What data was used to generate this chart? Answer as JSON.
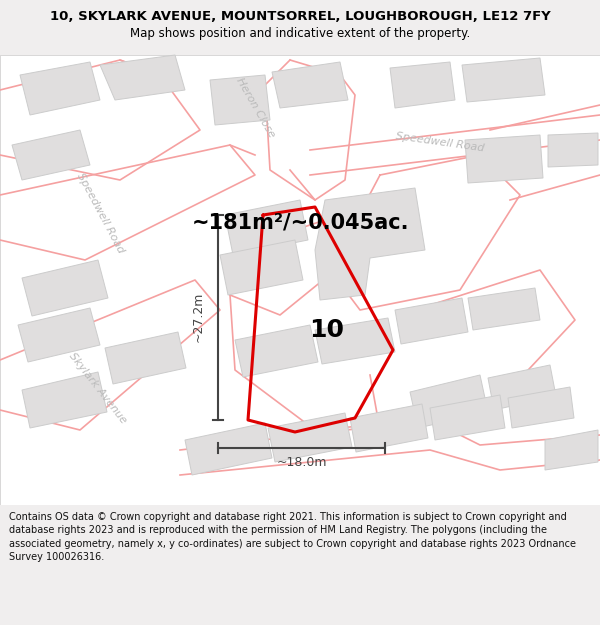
{
  "title_line1": "10, SKYLARK AVENUE, MOUNTSORREL, LOUGHBOROUGH, LE12 7FY",
  "title_line2": "Map shows position and indicative extent of the property.",
  "area_text": "~181m²/~0.045ac.",
  "dim_height": "~27.2m",
  "dim_width": "~18.0m",
  "plot_label": "10",
  "footer_text": "Contains OS data © Crown copyright and database right 2021. This information is subject to Crown copyright and database rights 2023 and is reproduced with the permission of HM Land Registry. The polygons (including the associated geometry, namely x, y co-ordinates) are subject to Crown copyright and database rights 2023 Ordnance Survey 100026316.",
  "bg_color": "#f0eeee",
  "map_bg": "#ffffff",
  "road_line_color": "#f5a0a0",
  "road_fill_color": "#f8e8e8",
  "building_color": "#e0dede",
  "building_edge": "#cccccc",
  "plot_color": "#dd0000",
  "dim_color": "#444444",
  "road_text_color": "#bbbbbb",
  "title_color": "#000000",
  "footer_color": "#111111",
  "map_border_color": "#cccccc"
}
